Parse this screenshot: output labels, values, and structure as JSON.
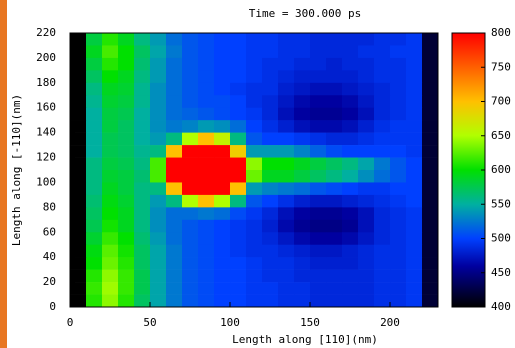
{
  "chart_data": {
    "type": "heatmap",
    "title": "Time = 300.000 ps",
    "xlabel": "Length along [110](nm)",
    "ylabel": "Length along [-110](nm)",
    "xlim": [
      0,
      230
    ],
    "xticks": [
      0,
      50,
      100,
      150,
      200
    ],
    "ylim": [
      0,
      220
    ],
    "yticks": [
      0,
      20,
      40,
      60,
      80,
      100,
      120,
      140,
      160,
      180,
      200,
      220
    ],
    "zlim": [
      400,
      800
    ],
    "zticks": [
      400,
      450,
      500,
      550,
      600,
      650,
      700,
      750,
      800
    ],
    "colorscale": [
      [
        400,
        "#000000"
      ],
      [
        460,
        "#0000a0"
      ],
      [
        500,
        "#0040ff"
      ],
      [
        550,
        "#00b0a0"
      ],
      [
        600,
        "#00e000"
      ],
      [
        650,
        "#b0ff00"
      ],
      [
        700,
        "#ffc000"
      ],
      [
        750,
        "#ff6000"
      ],
      [
        800,
        "#ff0000"
      ]
    ],
    "x": [
      5,
      15,
      25,
      35,
      45,
      55,
      65,
      75,
      85,
      95,
      105,
      115,
      125,
      135,
      145,
      155,
      165,
      175,
      185,
      195,
      205,
      215,
      225
    ],
    "y": [
      215,
      205,
      195,
      185,
      175,
      165,
      155,
      145,
      135,
      125,
      115,
      105,
      95,
      85,
      75,
      65,
      55,
      45,
      35,
      25,
      15,
      5
    ],
    "z": [
      [
        400,
        580,
        610,
        590,
        560,
        540,
        520,
        510,
        505,
        500,
        500,
        495,
        495,
        490,
        490,
        485,
        485,
        485,
        485,
        490,
        490,
        495,
        420
      ],
      [
        400,
        590,
        620,
        600,
        570,
        545,
        525,
        510,
        505,
        500,
        500,
        495,
        495,
        490,
        490,
        485,
        485,
        485,
        490,
        490,
        495,
        495,
        420
      ],
      [
        400,
        580,
        610,
        600,
        565,
        540,
        520,
        510,
        505,
        500,
        500,
        495,
        490,
        490,
        485,
        485,
        480,
        485,
        485,
        490,
        490,
        495,
        420
      ],
      [
        400,
        570,
        600,
        590,
        560,
        540,
        520,
        510,
        505,
        500,
        500,
        495,
        490,
        485,
        480,
        480,
        480,
        480,
        485,
        490,
        490,
        495,
        420
      ],
      [
        400,
        560,
        590,
        585,
        555,
        535,
        520,
        510,
        505,
        500,
        495,
        490,
        490,
        480,
        475,
        470,
        470,
        475,
        480,
        485,
        490,
        495,
        420
      ],
      [
        400,
        555,
        585,
        580,
        555,
        535,
        520,
        510,
        505,
        505,
        500,
        490,
        485,
        475,
        465,
        460,
        460,
        465,
        475,
        485,
        490,
        495,
        420
      ],
      [
        400,
        550,
        580,
        575,
        550,
        535,
        520,
        515,
        510,
        505,
        500,
        495,
        485,
        470,
        460,
        455,
        455,
        460,
        470,
        485,
        490,
        495,
        420
      ],
      [
        400,
        550,
        580,
        570,
        550,
        535,
        525,
        530,
        540,
        535,
        520,
        500,
        490,
        480,
        470,
        465,
        465,
        470,
        480,
        490,
        495,
        495,
        420
      ],
      [
        400,
        550,
        575,
        570,
        550,
        540,
        560,
        650,
        700,
        660,
        560,
        510,
        500,
        500,
        495,
        490,
        485,
        485,
        490,
        495,
        495,
        495,
        420
      ],
      [
        400,
        550,
        575,
        570,
        555,
        560,
        700,
        800,
        800,
        800,
        690,
        540,
        540,
        540,
        530,
        515,
        505,
        500,
        500,
        500,
        500,
        495,
        420
      ],
      [
        400,
        560,
        580,
        575,
        560,
        620,
        800,
        800,
        800,
        800,
        800,
        640,
        600,
        600,
        590,
        580,
        570,
        560,
        545,
        525,
        510,
        500,
        420
      ],
      [
        400,
        560,
        585,
        580,
        565,
        620,
        800,
        800,
        800,
        800,
        800,
        630,
        590,
        590,
        580,
        570,
        560,
        550,
        535,
        520,
        510,
        500,
        420
      ],
      [
        400,
        560,
        590,
        580,
        560,
        560,
        700,
        800,
        800,
        800,
        700,
        540,
        530,
        525,
        520,
        510,
        505,
        500,
        495,
        495,
        500,
        500,
        420
      ],
      [
        400,
        565,
        595,
        585,
        560,
        540,
        560,
        650,
        700,
        650,
        560,
        510,
        500,
        490,
        480,
        475,
        475,
        480,
        485,
        490,
        495,
        500,
        420
      ],
      [
        400,
        570,
        600,
        590,
        560,
        535,
        520,
        520,
        525,
        520,
        505,
        495,
        485,
        470,
        460,
        455,
        455,
        460,
        470,
        485,
        490,
        495,
        420
      ],
      [
        400,
        575,
        605,
        590,
        560,
        535,
        520,
        510,
        505,
        500,
        495,
        490,
        480,
        465,
        455,
        450,
        450,
        455,
        470,
        485,
        490,
        495,
        420
      ],
      [
        400,
        585,
        615,
        600,
        565,
        540,
        520,
        510,
        505,
        500,
        495,
        490,
        485,
        475,
        465,
        460,
        460,
        465,
        475,
        485,
        490,
        495,
        420
      ],
      [
        400,
        595,
        625,
        605,
        570,
        545,
        525,
        510,
        505,
        500,
        495,
        490,
        490,
        485,
        480,
        475,
        475,
        480,
        485,
        490,
        490,
        495,
        420
      ],
      [
        400,
        600,
        630,
        610,
        570,
        545,
        525,
        510,
        505,
        500,
        500,
        495,
        490,
        490,
        485,
        480,
        480,
        480,
        485,
        490,
        490,
        495,
        420
      ],
      [
        400,
        610,
        640,
        615,
        575,
        545,
        525,
        510,
        505,
        500,
        500,
        495,
        490,
        490,
        485,
        485,
        485,
        485,
        485,
        490,
        490,
        495,
        420
      ],
      [
        400,
        615,
        645,
        615,
        575,
        545,
        525,
        510,
        505,
        500,
        500,
        495,
        495,
        490,
        490,
        485,
        485,
        485,
        485,
        490,
        490,
        495,
        420
      ],
      [
        400,
        610,
        640,
        610,
        570,
        545,
        525,
        510,
        505,
        500,
        500,
        495,
        495,
        490,
        490,
        485,
        485,
        485,
        485,
        490,
        490,
        495,
        420
      ]
    ]
  }
}
